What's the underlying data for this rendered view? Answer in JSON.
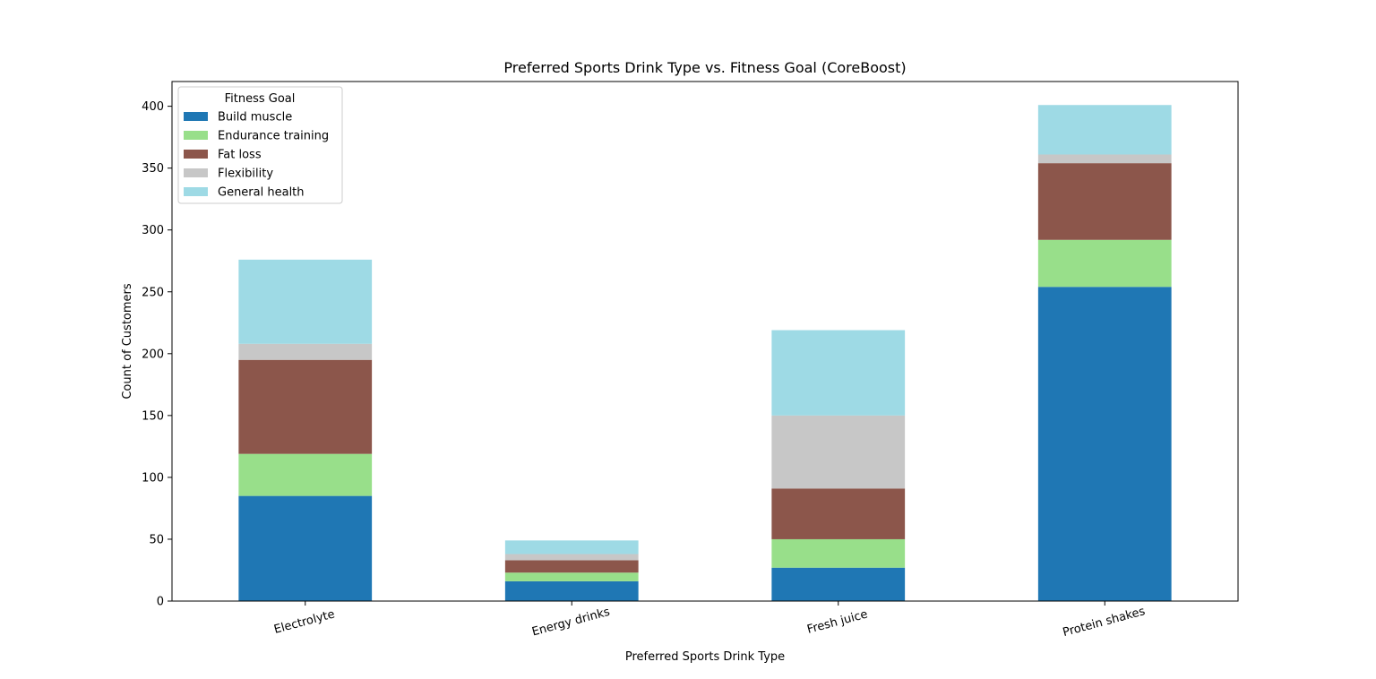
{
  "chart_data": {
    "type": "bar",
    "stacked": true,
    "title": "Preferred Sports Drink Type vs. Fitness Goal (CoreBoost)",
    "xlabel": "Preferred Sports Drink Type",
    "ylabel": "Count of Customers",
    "ylim": [
      0,
      420
    ],
    "yticks": [
      0,
      50,
      100,
      150,
      200,
      250,
      300,
      350,
      400
    ],
    "categories": [
      "Electrolyte",
      "Energy drinks",
      "Fresh juice",
      "Protein shakes"
    ],
    "series": [
      {
        "name": "Build muscle",
        "color": "#1f77b4",
        "values": [
          85,
          16,
          27,
          254
        ]
      },
      {
        "name": "Endurance training",
        "color": "#98df8a",
        "values": [
          34,
          7,
          23,
          38
        ]
      },
      {
        "name": "Fat loss",
        "color": "#8c564b",
        "values": [
          76,
          10,
          41,
          62
        ]
      },
      {
        "name": "Flexibility",
        "color": "#c7c7c7",
        "values": [
          13,
          5,
          59,
          7
        ]
      },
      {
        "name": "General health",
        "color": "#9edae5",
        "values": [
          68,
          11,
          69,
          40
        ]
      }
    ],
    "legend": {
      "title": "Fitness Goal",
      "placement": "top-left"
    },
    "grid": false
  }
}
